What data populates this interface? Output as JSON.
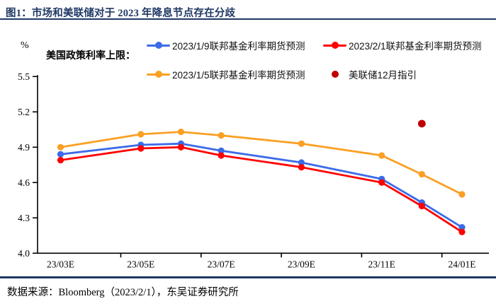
{
  "header": {
    "title": "图1：市场和美联储对于 2023 年降息节点存在分歧"
  },
  "legend": {
    "prefix": "美国政策利率上限：",
    "items": [
      {
        "label": "2023/1/9联邦基金利率期货预测",
        "color": "#3B6BE8",
        "marker": "line-dot"
      },
      {
        "label": "2023/2/1联邦基金利率期货预测",
        "color": "#FF0000",
        "marker": "line-dot"
      },
      {
        "label": "2023/1/5联邦基金利率期货预测",
        "color": "#FAA023",
        "marker": "line-dot"
      },
      {
        "label": "美联储12月指引",
        "color": "#C00000",
        "marker": "dot"
      }
    ]
  },
  "chart_data": {
    "type": "line",
    "title": "市场和美联储对于2023年降息节点存在分歧",
    "ylabel": "%",
    "ylim": [
      4.0,
      5.5
    ],
    "yticks": [
      4.0,
      4.3,
      4.6,
      4.9,
      5.2,
      5.5
    ],
    "x_months": [
      3,
      5,
      6,
      7,
      9,
      11,
      12,
      13
    ],
    "x_month_names": [
      "23/03",
      "23/05",
      "23/06",
      "23/07",
      "23/09",
      "23/11",
      "23/12",
      "24/01"
    ],
    "xtick_labels": [
      "23/03E",
      "23/05E",
      "23/07E",
      "23/09E",
      "23/11E",
      "24/01E"
    ],
    "xtick_label_months": [
      3,
      5,
      7,
      9,
      11,
      13
    ],
    "boundary_tick_months": [
      4.5,
      6.5,
      8.5,
      10.5,
      12.5
    ],
    "grid": false,
    "legend_position": "top",
    "series": [
      {
        "name": "2023/1/9联邦基金利率期货预测",
        "color": "#3B6BE8",
        "values": [
          4.84,
          4.92,
          4.93,
          4.87,
          4.77,
          4.63,
          4.43,
          4.22
        ]
      },
      {
        "name": "2023/2/1联邦基金利率期货预测",
        "color": "#FF0000",
        "values": [
          4.79,
          4.89,
          4.9,
          4.83,
          4.73,
          4.6,
          4.4,
          4.18
        ]
      },
      {
        "name": "2023/1/5联邦基金利率期货预测",
        "color": "#FAA023",
        "values": [
          4.9,
          5.01,
          5.03,
          5.0,
          4.93,
          4.83,
          4.67,
          4.5
        ]
      }
    ],
    "point_series": [
      {
        "name": "美联储12月指引",
        "color": "#C00000",
        "x_month": 12,
        "value": 5.1
      }
    ],
    "axis_color": "#000000"
  },
  "footer": {
    "source": "数据来源：Bloomberg（2023/2/1），东吴证券研究所"
  }
}
